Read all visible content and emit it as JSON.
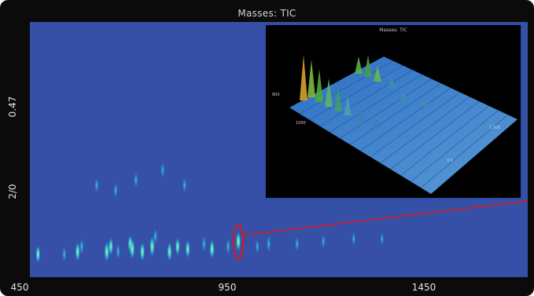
{
  "colors": {
    "frame": "#0b0b0b",
    "plot_bg": "#3550a6",
    "peak_low": "#2a8fd6",
    "peak_mid": "#35d0e0",
    "peak_high": "#c8f06a",
    "highlight": "#e01818"
  },
  "chart_data": [
    {
      "type": "heatmap",
      "title": "Masses: TIC",
      "xlabel": "",
      "ylabel": "",
      "xlim": [
        450,
        1680
      ],
      "ylim": [
        0,
        1
      ],
      "x_ticks": [
        "450",
        "950",
        "1450"
      ],
      "y_ticks": [
        "2/0",
        "0.47"
      ],
      "grid": false,
      "points": [
        {
          "x": 470,
          "y": 0.09,
          "v": 0.7
        },
        {
          "x": 535,
          "y": 0.09,
          "v": 0.5
        },
        {
          "x": 568,
          "y": 0.1,
          "v": 0.8
        },
        {
          "x": 578,
          "y": 0.12,
          "v": 0.6
        },
        {
          "x": 615,
          "y": 0.36,
          "v": 0.5
        },
        {
          "x": 640,
          "y": 0.1,
          "v": 0.9
        },
        {
          "x": 650,
          "y": 0.12,
          "v": 0.7
        },
        {
          "x": 662,
          "y": 0.34,
          "v": 0.5
        },
        {
          "x": 668,
          "y": 0.1,
          "v": 0.6
        },
        {
          "x": 698,
          "y": 0.13,
          "v": 0.7
        },
        {
          "x": 703,
          "y": 0.11,
          "v": 0.9
        },
        {
          "x": 712,
          "y": 0.38,
          "v": 0.5
        },
        {
          "x": 728,
          "y": 0.1,
          "v": 0.8
        },
        {
          "x": 752,
          "y": 0.12,
          "v": 0.9
        },
        {
          "x": 760,
          "y": 0.16,
          "v": 0.6
        },
        {
          "x": 778,
          "y": 0.42,
          "v": 0.5
        },
        {
          "x": 795,
          "y": 0.1,
          "v": 0.8
        },
        {
          "x": 815,
          "y": 0.12,
          "v": 0.7
        },
        {
          "x": 832,
          "y": 0.36,
          "v": 0.5
        },
        {
          "x": 840,
          "y": 0.11,
          "v": 0.7
        },
        {
          "x": 880,
          "y": 0.13,
          "v": 0.6
        },
        {
          "x": 900,
          "y": 0.11,
          "v": 0.8
        },
        {
          "x": 940,
          "y": 0.12,
          "v": 0.6
        },
        {
          "x": 965,
          "y": 0.14,
          "v": 0.9
        },
        {
          "x": 1012,
          "y": 0.12,
          "v": 0.5
        },
        {
          "x": 1040,
          "y": 0.13,
          "v": 0.6
        },
        {
          "x": 1110,
          "y": 0.13,
          "v": 0.5
        },
        {
          "x": 1175,
          "y": 0.14,
          "v": 0.4
        },
        {
          "x": 1250,
          "y": 0.15,
          "v": 0.4
        },
        {
          "x": 1320,
          "y": 0.15,
          "v": 0.3
        }
      ],
      "annotations": [
        {
          "type": "ellipse",
          "x": 965,
          "y": 0.14
        }
      ]
    },
    {
      "type": "surface",
      "title": "Masses: TIC",
      "ticks": [
        "800",
        "1000",
        "1,000",
        "0.5"
      ]
    }
  ]
}
